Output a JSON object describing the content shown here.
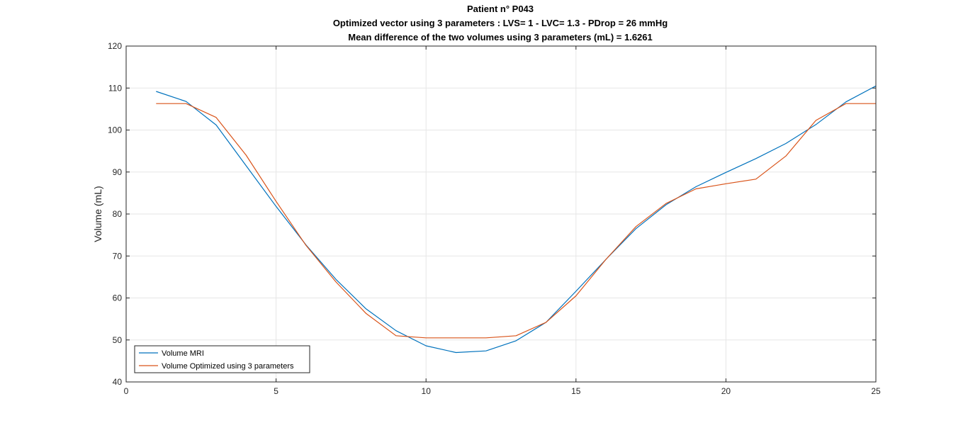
{
  "chart_data": {
    "type": "line",
    "title_lines": [
      "Patient n° P043",
      "Optimized vector using 3 parameters : LVS= 1 - LVC= 1.3 - PDrop = 26 mmHg",
      "Mean difference of the two volumes using 3 parameters (mL)  = 1.6261"
    ],
    "xlabel": "",
    "ylabel": "Volume (mL)",
    "xlim": [
      0,
      25
    ],
    "ylim": [
      40,
      120
    ],
    "xticks": [
      0,
      5,
      10,
      15,
      20,
      25
    ],
    "yticks": [
      40,
      50,
      60,
      70,
      80,
      90,
      100,
      110,
      120
    ],
    "grid": true,
    "legend_position": "bottom-left",
    "x": [
      1,
      2,
      3,
      4,
      5,
      6,
      7,
      8,
      9,
      10,
      11,
      12,
      13,
      14,
      15,
      16,
      17,
      18,
      19,
      20,
      21,
      22,
      23,
      24,
      25
    ],
    "series": [
      {
        "name": "Volume MRI",
        "color": "#0072BD",
        "values": [
          109.2,
          106.8,
          101.2,
          91.5,
          81.8,
          72.6,
          64.4,
          57.4,
          52.2,
          48.6,
          47.0,
          47.4,
          49.8,
          54.2,
          61.6,
          69.2,
          76.5,
          82.2,
          86.5,
          89.9,
          93.2,
          96.8,
          101.3,
          106.7,
          110.5
        ]
      },
      {
        "name": "Volume Optimized using 3 parameters",
        "color": "#D95319",
        "values": [
          106.3,
          106.3,
          103.0,
          94.0,
          83.0,
          72.5,
          63.8,
          56.3,
          51.0,
          50.5,
          50.5,
          50.5,
          51.0,
          54.2,
          60.5,
          69.2,
          77.0,
          82.5,
          86.0,
          87.2,
          88.3,
          93.8,
          102.3,
          106.3,
          106.3
        ]
      }
    ]
  }
}
